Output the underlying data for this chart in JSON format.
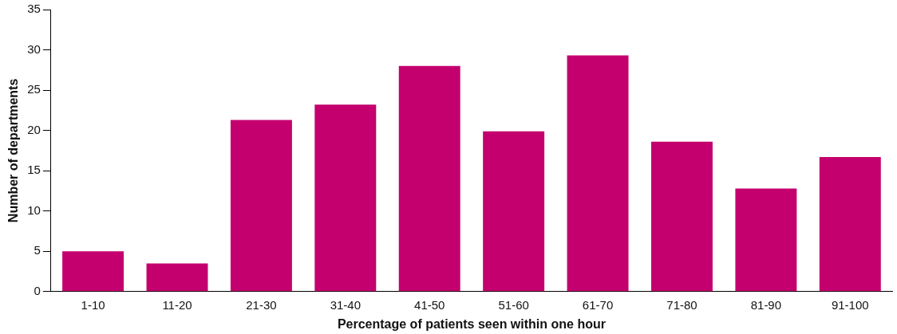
{
  "chart_data": {
    "type": "bar",
    "xlabel": "Percentage of patients seen within one hour",
    "ylabel": "Number of departments",
    "categories": [
      "1-10",
      "11-20",
      "21-30",
      "31-40",
      "41-50",
      "51-60",
      "61-70",
      "71-80",
      "81-90",
      "91-100"
    ],
    "values": [
      5,
      3.5,
      21.3,
      23.2,
      28,
      19.9,
      29.3,
      18.6,
      12.8,
      16.7
    ],
    "color": "#c4006e",
    "ylim": [
      0,
      35
    ],
    "yticks": [
      0,
      5,
      10,
      15,
      20,
      25,
      30,
      35
    ],
    "grid": false,
    "legend": false
  }
}
